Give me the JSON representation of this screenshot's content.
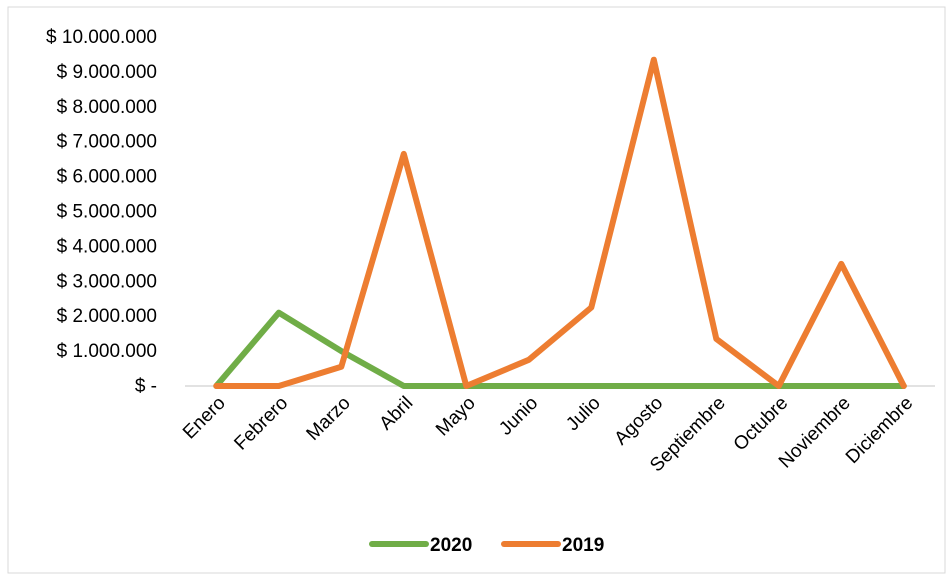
{
  "chart_data": {
    "type": "line",
    "title": "",
    "xlabel": "",
    "ylabel": "",
    "categories": [
      "Enero",
      "Febrero",
      "Marzo",
      "Abril",
      "Mayo",
      "Junio",
      "Julio",
      "Agosto",
      "Septiembre",
      "Octubre",
      "Noviembre",
      "Diciembre"
    ],
    "y_tick_labels": [
      "$ -",
      "$ 1.000.000",
      "$ 2.000.000",
      "$ 3.000.000",
      "$ 4.000.000",
      "$ 5.000.000",
      "$ 6.000.000",
      "$ 7.000.000",
      "$ 8.000.000",
      "$ 9.000.000",
      "$ 10.000.000"
    ],
    "y_tick_values": [
      0,
      1000000,
      2000000,
      3000000,
      4000000,
      5000000,
      6000000,
      7000000,
      8000000,
      9000000,
      10000000
    ],
    "ylim": [
      0,
      10000000
    ],
    "grid": false,
    "legend_position": "bottom",
    "series": [
      {
        "name": "2020",
        "color": "#70AD47",
        "values": [
          0,
          2100000,
          1000000,
          0,
          0,
          0,
          0,
          0,
          0,
          0,
          0,
          0
        ]
      },
      {
        "name": "2019",
        "color": "#ED7D31",
        "values": [
          0,
          0,
          550000,
          6650000,
          0,
          750000,
          2250000,
          9350000,
          1350000,
          0,
          3500000,
          0
        ]
      }
    ]
  }
}
